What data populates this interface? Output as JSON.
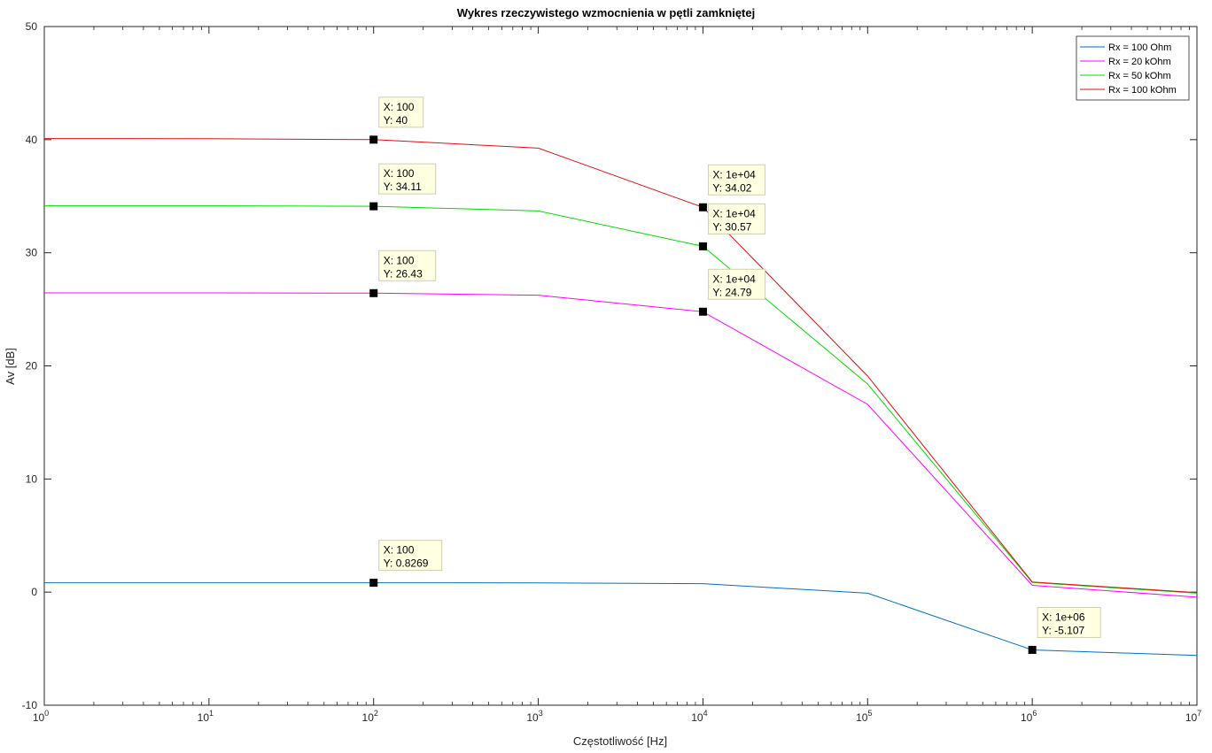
{
  "chart_data": {
    "type": "line",
    "title": "Wykres rzeczywistego wzmocnienia w pętli zamkniętej",
    "xlabel": "Częstotliwość [Hz]",
    "ylabel": "Av [dB]",
    "xscale": "log",
    "xlim": [
      1,
      10000000
    ],
    "ylim": [
      -10,
      50
    ],
    "grid": false,
    "legend_position": "top-right",
    "x_tick_exponents": [
      "0",
      "1",
      "2",
      "3",
      "4",
      "5",
      "6",
      "7"
    ],
    "x_tick_base": "10",
    "y_ticks": [
      "-10",
      "0",
      "10",
      "20",
      "30",
      "40",
      "50"
    ],
    "x": [
      1,
      10,
      100,
      1000,
      10000,
      100000,
      1000000,
      10000000
    ],
    "series": [
      {
        "name": "Rx = 100 Ohm",
        "color": "#0072BD",
        "values": [
          0.83,
          0.83,
          0.8269,
          0.82,
          0.75,
          -0.1,
          -5.107,
          -5.6
        ]
      },
      {
        "name": "Rx = 20 kOhm",
        "color": "#FF00FF",
        "values": [
          26.45,
          26.45,
          26.43,
          26.25,
          24.79,
          16.6,
          0.6,
          -0.45
        ]
      },
      {
        "name": "Rx = 50 kOhm",
        "color": "#00DD00",
        "values": [
          34.15,
          34.15,
          34.11,
          33.7,
          30.57,
          18.4,
          0.85,
          -0.1
        ]
      },
      {
        "name": "Rx = 100 kOhm",
        "color": "#E01010",
        "values": [
          40.1,
          40.08,
          40.0,
          39.25,
          34.02,
          19.1,
          0.9,
          -0.05
        ]
      }
    ],
    "datatips": [
      {
        "series": 3,
        "x": 100,
        "y": 40,
        "x_text": "X: 100",
        "y_text": "Y: 40"
      },
      {
        "series": 2,
        "x": 100,
        "y": 34.11,
        "x_text": "X: 100",
        "y_text": "Y: 34.11"
      },
      {
        "series": 1,
        "x": 100,
        "y": 26.43,
        "x_text": "X: 100",
        "y_text": "Y: 26.43"
      },
      {
        "series": 0,
        "x": 100,
        "y": 0.8269,
        "x_text": "X: 100",
        "y_text": "Y: 0.8269"
      },
      {
        "series": 3,
        "x": 10000,
        "y": 34.02,
        "x_text": "X: 1e+04",
        "y_text": "Y: 34.02"
      },
      {
        "series": 2,
        "x": 10000,
        "y": 30.57,
        "x_text": "X: 1e+04",
        "y_text": "Y: 30.57"
      },
      {
        "series": 1,
        "x": 10000,
        "y": 24.79,
        "x_text": "X: 1e+04",
        "y_text": "Y: 24.79"
      },
      {
        "series": 0,
        "x": 1000000,
        "y": -5.107,
        "x_text": "X: 1e+06",
        "y_text": "Y: -5.107"
      }
    ]
  }
}
